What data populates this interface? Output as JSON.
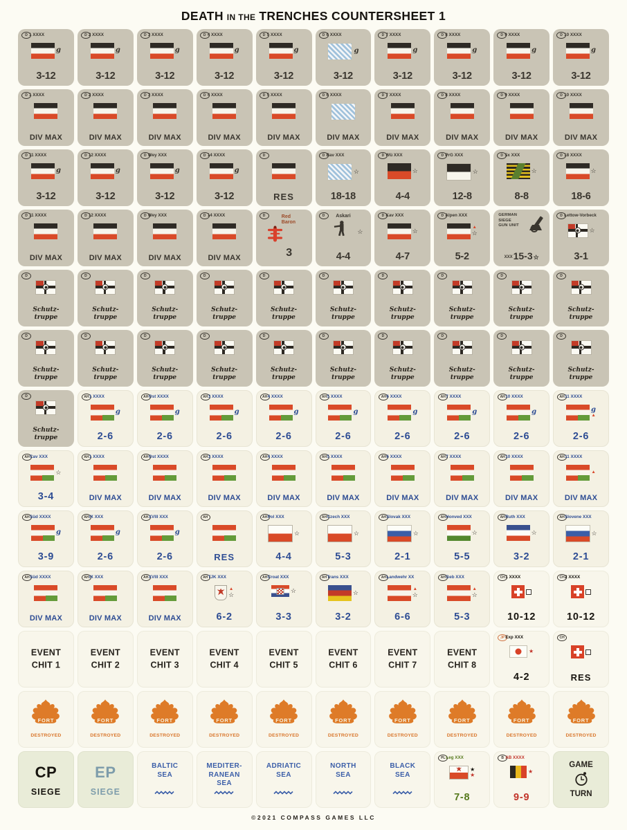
{
  "title": {
    "p1": "DEATH",
    "p2": "IN THE",
    "p3": "TRENCHES COUNTERSHEET 1"
  },
  "footer": "©2021 COMPASS GAMES LLC",
  "colors": {
    "counter_grey": "#c9c4b5",
    "counter_cream": "#f4f1e3",
    "counter_green": "#e9ecd8",
    "german_red": "#d94a28",
    "ah_green": "#649b3a",
    "value_blue": "#2e4d94",
    "flame_orange": "#de7b28",
    "sea_blue": "#3b5ea8"
  },
  "icons": {
    "guard": "g",
    "star": "☆",
    "star_filled": "★",
    "triangle": "▲"
  },
  "counters": [
    {
      "t": "u",
      "bg": "g",
      "n": "D",
      "l": "1 XXXX",
      "f": "de",
      "g": 1,
      "v": "3-12"
    },
    {
      "t": "u",
      "bg": "g",
      "n": "D",
      "l": "2 XXXX",
      "f": "de",
      "g": 1,
      "v": "3-12"
    },
    {
      "t": "u",
      "bg": "g",
      "n": "D",
      "l": "3 XXXX",
      "f": "de",
      "g": 1,
      "v": "3-12"
    },
    {
      "t": "u",
      "bg": "g",
      "n": "D",
      "l": "4 XXXX",
      "f": "de",
      "g": 1,
      "v": "3-12"
    },
    {
      "t": "u",
      "bg": "g",
      "n": "D",
      "l": "5 XXXX",
      "f": "de",
      "g": 1,
      "v": "3-12"
    },
    {
      "t": "u",
      "bg": "g",
      "n": "D",
      "l": "6 XXXX",
      "f": "bav",
      "g": 1,
      "v": "3-12"
    },
    {
      "t": "u",
      "bg": "g",
      "n": "D",
      "l": "7 XXXX",
      "f": "de",
      "g": 1,
      "v": "3-12"
    },
    {
      "t": "u",
      "bg": "g",
      "n": "D",
      "l": "8 XXXX",
      "f": "de",
      "g": 1,
      "v": "3-12"
    },
    {
      "t": "u",
      "bg": "g",
      "n": "D",
      "l": "9 XXXX",
      "f": "de",
      "g": 1,
      "v": "3-12"
    },
    {
      "t": "u",
      "bg": "g",
      "n": "D",
      "l": "10 XXXX",
      "f": "de",
      "g": 1,
      "v": "3-12"
    },
    {
      "t": "u",
      "bg": "g",
      "n": "D",
      "l": "1 XXXX",
      "f": "de",
      "v": "DIV MAX"
    },
    {
      "t": "u",
      "bg": "g",
      "n": "D",
      "l": "2 XXXX",
      "f": "de",
      "v": "DIV MAX"
    },
    {
      "t": "u",
      "bg": "g",
      "n": "D",
      "l": "3 XXXX",
      "f": "de",
      "v": "DIV MAX"
    },
    {
      "t": "u",
      "bg": "g",
      "n": "D",
      "l": "4 XXXX",
      "f": "de",
      "v": "DIV MAX"
    },
    {
      "t": "u",
      "bg": "g",
      "n": "D",
      "l": "5 XXXX",
      "f": "de",
      "v": "DIV MAX"
    },
    {
      "t": "u",
      "bg": "g",
      "n": "D",
      "l": "6 XXXX",
      "f": "bav",
      "v": "DIV MAX"
    },
    {
      "t": "u",
      "bg": "g",
      "n": "D",
      "l": "7 XXXX",
      "f": "de",
      "v": "DIV MAX"
    },
    {
      "t": "u",
      "bg": "g",
      "n": "D",
      "l": "8 XXXX",
      "f": "de",
      "v": "DIV MAX"
    },
    {
      "t": "u",
      "bg": "g",
      "n": "D",
      "l": "9 XXXX",
      "f": "de",
      "v": "DIV MAX"
    },
    {
      "t": "u",
      "bg": "g",
      "n": "D",
      "l": "10 XXXX",
      "f": "de",
      "v": "DIV MAX"
    },
    {
      "t": "u",
      "bg": "g",
      "n": "D",
      "l": "11 XXXX",
      "f": "de",
      "g": 1,
      "v": "3-12"
    },
    {
      "t": "u",
      "bg": "g",
      "n": "D",
      "l": "12 XXXX",
      "f": "de",
      "g": 1,
      "v": "3-12"
    },
    {
      "t": "u",
      "bg": "g",
      "n": "D",
      "l": "Wey XXX",
      "f": "de",
      "g": 1,
      "v": "3-12"
    },
    {
      "t": "u",
      "bg": "g",
      "n": "D",
      "l": "14 XXXX",
      "f": "de",
      "g": 1,
      "v": "3-12"
    },
    {
      "t": "u",
      "bg": "g",
      "n": "D",
      "f": "de",
      "v": "RES"
    },
    {
      "t": "u",
      "bg": "g",
      "n": "D",
      "l": "Bav XXX",
      "f": "bav",
      "s": 1,
      "v": "18-18"
    },
    {
      "t": "u",
      "bg": "g",
      "n": "D",
      "l": "Wü XXX",
      "f": "wu",
      "s": 1,
      "v": "4-4"
    },
    {
      "t": "u",
      "bg": "g",
      "n": "D",
      "l": "PrG XXX",
      "f": "pr",
      "s": 1,
      "v": "12-8"
    },
    {
      "t": "u",
      "bg": "g",
      "n": "D",
      "l": "Sx XXX",
      "f": "sx",
      "s": 1,
      "v": "8-8"
    },
    {
      "t": "u",
      "bg": "g",
      "n": "D",
      "l": "18 XXXX",
      "f": "de",
      "s": 1,
      "v": "18-6"
    },
    {
      "t": "u",
      "bg": "g",
      "n": "D",
      "l": "11 XXXX",
      "f": "de",
      "v": "DIV MAX"
    },
    {
      "t": "u",
      "bg": "g",
      "n": "D",
      "l": "12 XXXX",
      "f": "de",
      "v": "DIV MAX"
    },
    {
      "t": "u",
      "bg": "g",
      "n": "D",
      "l": "Wey XXX",
      "f": "de",
      "v": "DIV MAX"
    },
    {
      "t": "u",
      "bg": "g",
      "n": "D",
      "l": "14 XXXX",
      "f": "de",
      "v": "DIV MAX"
    },
    {
      "t": "rb",
      "bg": "g",
      "n": "D",
      "l": "Red\nBaron",
      "v": "3"
    },
    {
      "t": "as",
      "bg": "g",
      "n": "D",
      "l": "Askari",
      "s": 1,
      "v": "4-4"
    },
    {
      "t": "u",
      "bg": "g",
      "n": "D",
      "l": "Kav XXX",
      "f": "de",
      "s": 1,
      "v": "4-7"
    },
    {
      "t": "u",
      "bg": "g",
      "n": "D",
      "l": "Alpen XXX",
      "f": "de",
      "tr": 1,
      "s": 1,
      "v": "5-2"
    },
    {
      "t": "sg",
      "bg": "g",
      "l": "GERMAN\nSIEGE\nGUN UNIT",
      "px": "XXX",
      "v": "15-3",
      "s": 1
    },
    {
      "t": "u",
      "bg": "g",
      "n": "D",
      "l": "Lettow-Vorbeck",
      "f": "col",
      "s": 1,
      "v": "3-1"
    },
    {
      "t": "st",
      "bg": "g",
      "n": "D",
      "l": "Schutz-\ntruppe"
    },
    {
      "t": "st",
      "bg": "g",
      "n": "D",
      "l": "Schutz-\ntruppe"
    },
    {
      "t": "st",
      "bg": "g",
      "n": "D",
      "l": "Schutz-\ntruppe"
    },
    {
      "t": "st",
      "bg": "g",
      "n": "D",
      "l": "Schutz-\ntruppe"
    },
    {
      "t": "st",
      "bg": "g",
      "n": "D",
      "l": "Schutz-\ntruppe"
    },
    {
      "t": "st",
      "bg": "g",
      "n": "D",
      "l": "Schutz-\ntruppe"
    },
    {
      "t": "st",
      "bg": "g",
      "n": "D",
      "l": "Schutz-\ntruppe"
    },
    {
      "t": "st",
      "bg": "g",
      "n": "D",
      "l": "Schutz-\ntruppe"
    },
    {
      "t": "st",
      "bg": "g",
      "n": "D",
      "l": "Schutz-\ntruppe"
    },
    {
      "t": "st",
      "bg": "g",
      "n": "D",
      "l": "Schutz-\ntruppe"
    },
    {
      "t": "st",
      "bg": "g",
      "n": "D",
      "l": "Schutz-\ntruppe"
    },
    {
      "t": "st",
      "bg": "g",
      "n": "D",
      "l": "Schutz-\ntruppe"
    },
    {
      "t": "st",
      "bg": "g",
      "n": "D",
      "l": "Schutz-\ntruppe"
    },
    {
      "t": "st",
      "bg": "g",
      "n": "D",
      "l": "Schutz-\ntruppe"
    },
    {
      "t": "st",
      "bg": "g",
      "n": "D",
      "l": "Schutz-\ntruppe"
    },
    {
      "t": "st",
      "bg": "g",
      "n": "D",
      "l": "Schutz-\ntruppe"
    },
    {
      "t": "st",
      "bg": "g",
      "n": "D",
      "l": "Schutz-\ntruppe"
    },
    {
      "t": "st",
      "bg": "g",
      "n": "D",
      "l": "Schutz-\ntruppe"
    },
    {
      "t": "st",
      "bg": "g",
      "n": "D",
      "l": "Schutz-\ntruppe"
    },
    {
      "t": "st",
      "bg": "g",
      "n": "D",
      "l": "Schutz-\ntruppe"
    },
    {
      "t": "st",
      "bg": "g",
      "n": "D",
      "l": "Schutz-\ntruppe"
    },
    {
      "t": "u",
      "bg": "c",
      "n": "AH",
      "l": "1 XXXX",
      "f": "ah",
      "g": 1,
      "v": "2-6"
    },
    {
      "t": "u",
      "bg": "c",
      "n": "AH",
      "l": "Ost XXXX",
      "f": "ah",
      "g": 1,
      "v": "2-6"
    },
    {
      "t": "u",
      "bg": "c",
      "n": "AH",
      "l": "3 XXXX",
      "f": "ah",
      "g": 1,
      "v": "2-6"
    },
    {
      "t": "u",
      "bg": "c",
      "n": "AH",
      "l": "4 XXXX",
      "f": "ah",
      "g": 1,
      "v": "2-6"
    },
    {
      "t": "u",
      "bg": "c",
      "n": "AH",
      "l": "5 XXXX",
      "f": "ah",
      "g": 1,
      "v": "2-6"
    },
    {
      "t": "u",
      "bg": "c",
      "n": "AH",
      "l": "6 XXXX",
      "f": "ah",
      "g": 1,
      "v": "2-6"
    },
    {
      "t": "u",
      "bg": "c",
      "n": "AH",
      "l": "7 XXXX",
      "f": "ah",
      "g": 1,
      "v": "2-6"
    },
    {
      "t": "u",
      "bg": "c",
      "n": "AH",
      "l": "10 XXXX",
      "f": "ah",
      "g": 1,
      "v": "2-6"
    },
    {
      "t": "u",
      "bg": "c",
      "n": "AH",
      "l": "11 XXXX",
      "f": "ah",
      "g": 1,
      "tr": 1,
      "v": "2-6"
    },
    {
      "t": "u",
      "bg": "c",
      "n": "AH",
      "l": "Cav XXX",
      "f": "ah",
      "s": 1,
      "v": "3-4"
    },
    {
      "t": "u",
      "bg": "c",
      "n": "AH",
      "l": "1 XXXX",
      "f": "ah",
      "v": "DIV MAX"
    },
    {
      "t": "u",
      "bg": "c",
      "n": "AH",
      "l": "Ost XXXX",
      "f": "ah",
      "v": "DIV MAX"
    },
    {
      "t": "u",
      "bg": "c",
      "n": "AH",
      "l": "3 XXXX",
      "f": "ah",
      "v": "DIV MAX"
    },
    {
      "t": "u",
      "bg": "c",
      "n": "AH",
      "l": "4 XXXX",
      "f": "ah",
      "v": "DIV MAX"
    },
    {
      "t": "u",
      "bg": "c",
      "n": "AH",
      "l": "5 XXXX",
      "f": "ah",
      "v": "DIV MAX"
    },
    {
      "t": "u",
      "bg": "c",
      "n": "AH",
      "l": "6 XXXX",
      "f": "ah",
      "v": "DIV MAX"
    },
    {
      "t": "u",
      "bg": "c",
      "n": "AH",
      "l": "7 XXXX",
      "f": "ah",
      "v": "DIV MAX"
    },
    {
      "t": "u",
      "bg": "c",
      "n": "AH",
      "l": "10 XXXX",
      "f": "ah",
      "v": "DIV MAX"
    },
    {
      "t": "u",
      "bg": "c",
      "n": "AH",
      "l": "11 XXXX",
      "f": "ah",
      "tr": 1,
      "v": "DIV MAX"
    },
    {
      "t": "u",
      "bg": "c",
      "n": "AH",
      "l": "Süd XXXX",
      "f": "ah",
      "g": 1,
      "v": "3-9"
    },
    {
      "t": "u",
      "bg": "c",
      "n": "AH",
      "l": "IX XXX",
      "f": "ah",
      "g": 1,
      "v": "2-6"
    },
    {
      "t": "u",
      "bg": "c",
      "n": "AH",
      "l": "XVIII XXX",
      "f": "ah",
      "g": 1,
      "v": "2-6"
    },
    {
      "t": "u",
      "bg": "c",
      "n": "AH",
      "f": "ah",
      "v": "RES"
    },
    {
      "t": "u",
      "bg": "c",
      "n": "AH",
      "l": "Pol XXX",
      "f": "pl",
      "s": 1,
      "v": "4-4"
    },
    {
      "t": "u",
      "bg": "c",
      "n": "AH",
      "l": "Czech XXX",
      "f": "cz",
      "s": 1,
      "v": "5-3"
    },
    {
      "t": "u",
      "bg": "c",
      "n": "AH",
      "l": "Slovak XXX",
      "f": "sk",
      "s": 1,
      "v": "2-1"
    },
    {
      "t": "u",
      "bg": "c",
      "n": "AH",
      "l": "Honved XXX",
      "f": "hu",
      "s": 1,
      "v": "5-5"
    },
    {
      "t": "u",
      "bg": "c",
      "n": "AH",
      "l": "Ruth XXX",
      "f": "ru",
      "s": 1,
      "v": "3-2"
    },
    {
      "t": "u",
      "bg": "c",
      "n": "AH",
      "l": "Slovene XXX",
      "f": "sl",
      "s": 1,
      "v": "2-1"
    },
    {
      "t": "u",
      "bg": "c",
      "n": "AH",
      "l": "Süd XXXX",
      "f": "ah",
      "v": "DIV MAX"
    },
    {
      "t": "u",
      "bg": "c",
      "n": "AH",
      "l": "IX XXX",
      "f": "ah",
      "v": "DIV MAX"
    },
    {
      "t": "u",
      "bg": "c",
      "n": "AH",
      "l": "XVIII XXX",
      "f": "ah",
      "v": "DIV MAX"
    },
    {
      "t": "u",
      "bg": "c",
      "n": "AH",
      "l": "TJK XXX",
      "f": "ty",
      "tr": 1,
      "s": 1,
      "v": "6-2"
    },
    {
      "t": "u",
      "bg": "c",
      "n": "AH",
      "l": "Croat XXX",
      "f": "hr",
      "s": 1,
      "v": "3-3"
    },
    {
      "t": "u",
      "bg": "c",
      "n": "AH",
      "l": "Trans XXX",
      "f": "ts",
      "s": 1,
      "v": "3-2"
    },
    {
      "t": "u",
      "bg": "c",
      "n": "AH",
      "l": "Landwehr XX",
      "f": "at",
      "tr": 1,
      "s": 1,
      "v": "6-6"
    },
    {
      "t": "u",
      "bg": "c",
      "n": "AH",
      "l": "Geb XXX",
      "f": "at",
      "tr": 1,
      "s": 1,
      "v": "5-3"
    },
    {
      "t": "u",
      "bg": "w",
      "n": "CH",
      "l": "1 XXXX",
      "f": "ch",
      "sq": 1,
      "v": "10-12"
    },
    {
      "t": "u",
      "bg": "w",
      "n": "CH",
      "l": "2 XXXX",
      "f": "ch",
      "sq": 1,
      "v": "10-12"
    },
    {
      "t": "ev",
      "bg": "w",
      "l": "EVENT\nCHIT 1"
    },
    {
      "t": "ev",
      "bg": "w",
      "l": "EVENT\nCHIT 2"
    },
    {
      "t": "ev",
      "bg": "w",
      "l": "EVENT\nCHIT 3"
    },
    {
      "t": "ev",
      "bg": "w",
      "l": "EVENT\nCHIT 4"
    },
    {
      "t": "ev",
      "bg": "w",
      "l": "EVENT\nCHIT 5"
    },
    {
      "t": "ev",
      "bg": "w",
      "l": "EVENT\nCHIT 6"
    },
    {
      "t": "ev",
      "bg": "w",
      "l": "EVENT\nCHIT 7"
    },
    {
      "t": "ev",
      "bg": "w",
      "l": "EVENT\nCHIT 8"
    },
    {
      "t": "u",
      "bg": "w",
      "n": "JP",
      "l": "Exp XXX",
      "f": "jp",
      "rs": 1,
      "v": "4-2",
      "lc": "k",
      "vc": "k"
    },
    {
      "t": "u",
      "bg": "w",
      "n": "CH",
      "f": "ch",
      "sq": 1,
      "v": "RES"
    },
    {
      "t": "ft",
      "bg": "w",
      "l": "FORT",
      "v": "DESTROYED"
    },
    {
      "t": "ft",
      "bg": "w",
      "l": "FORT",
      "v": "DESTROYED"
    },
    {
      "t": "ft",
      "bg": "w",
      "l": "FORT",
      "v": "DESTROYED"
    },
    {
      "t": "ft",
      "bg": "w",
      "l": "FORT",
      "v": "DESTROYED"
    },
    {
      "t": "ft",
      "bg": "w",
      "l": "FORT",
      "v": "DESTROYED"
    },
    {
      "t": "ft",
      "bg": "w",
      "l": "FORT",
      "v": "DESTROYED"
    },
    {
      "t": "ft",
      "bg": "w",
      "l": "FORT",
      "v": "DESTROYED"
    },
    {
      "t": "ft",
      "bg": "w",
      "l": "FORT",
      "v": "DESTROYED"
    },
    {
      "t": "ft",
      "bg": "w",
      "l": "FORT",
      "v": "DESTROYED"
    },
    {
      "t": "ft",
      "bg": "w",
      "l": "FORT",
      "v": "DESTROYED"
    },
    {
      "t": "cp",
      "bg": "gn",
      "l": "CP",
      "v": "SIEGE",
      "lc": "k",
      "vc": "k"
    },
    {
      "t": "cp",
      "bg": "gn",
      "l": "EP",
      "v": "SIEGE",
      "lc": "st",
      "vc": "st"
    },
    {
      "t": "se",
      "bg": "w",
      "l": "BALTIC\nSEA"
    },
    {
      "t": "se",
      "bg": "w",
      "l": "MEDITER-\nRANEAN\nSEA"
    },
    {
      "t": "se",
      "bg": "w",
      "l": "ADRIATIC\nSEA"
    },
    {
      "t": "se",
      "bg": "w",
      "l": "NORTH\nSEA"
    },
    {
      "t": "se",
      "bg": "w",
      "l": "BLACK\nSEA"
    },
    {
      "t": "u",
      "bg": "w",
      "n": "PL",
      "l": "Leg XXX",
      "f": "ple",
      "bs": 1,
      "rs": 1,
      "v": "7-8"
    },
    {
      "t": "u",
      "bg": "w",
      "n": "B",
      "l": "AB XXXX",
      "f": "be",
      "rs": 1,
      "v": "9-9"
    },
    {
      "t": "gt",
      "bg": "gn",
      "l": "GAME",
      "v": "TURN"
    }
  ]
}
